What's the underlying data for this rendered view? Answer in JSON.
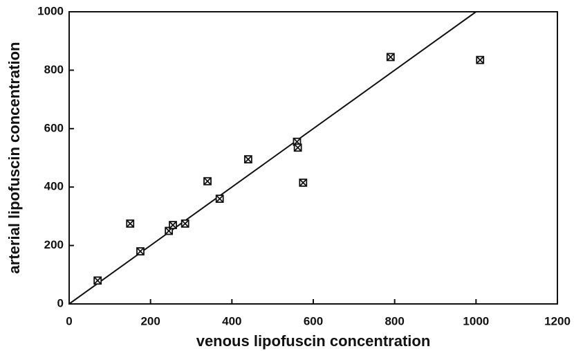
{
  "chart_data": {
    "type": "scatter",
    "xlabel": "venous lipofuscin concentration",
    "ylabel": "arterial lipofuscin concentration",
    "x": [
      70,
      150,
      175,
      245,
      255,
      285,
      340,
      370,
      440,
      560,
      562,
      575,
      790,
      1010
    ],
    "values": [
      80,
      275,
      180,
      250,
      270,
      275,
      420,
      360,
      495,
      555,
      535,
      415,
      845,
      835
    ],
    "color": "#111111",
    "line": {
      "x": [
        0,
        1000
      ],
      "y": [
        0,
        1000
      ]
    },
    "xlim": [
      0,
      1200
    ],
    "xticks": [
      0,
      200,
      400,
      600,
      800,
      1000,
      1200
    ],
    "ylim": [
      0,
      1000
    ],
    "yticks": [
      0,
      200,
      400,
      600,
      800,
      1000
    ]
  }
}
